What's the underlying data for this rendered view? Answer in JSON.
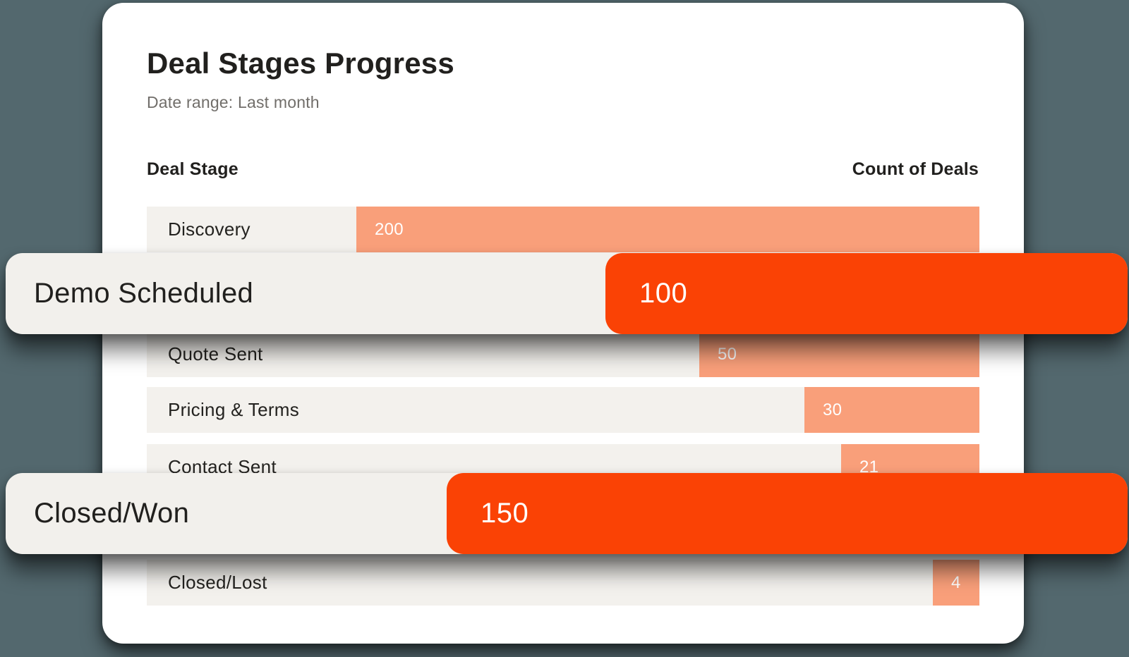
{
  "page": {
    "background_color": "#53686E"
  },
  "card": {
    "title": "Deal Stages Progress",
    "subtitle": "Date range: Last month",
    "columns": {
      "stage": "Deal Stage",
      "count": "Count of Deals"
    }
  },
  "colors": {
    "accent_strong": "#FA4205",
    "accent_soft": "#F99F7A",
    "row_background": "#F3F1ED",
    "card_background": "#FFFFFF",
    "text_dark": "#21201E",
    "text_muted": "#716E6A"
  },
  "rows": [
    {
      "label": "Discovery",
      "value": "200",
      "highlighted": false
    },
    {
      "label": "Demo Scheduled",
      "value": "100",
      "highlighted": true
    },
    {
      "label": "Quote Sent",
      "value": "50",
      "highlighted": false
    },
    {
      "label": "Pricing & Terms",
      "value": "30",
      "highlighted": false
    },
    {
      "label": "Contact Sent",
      "value": "21",
      "highlighted": false
    },
    {
      "label": "Closed/Won",
      "value": "150",
      "highlighted": true
    },
    {
      "label": "Closed/Lost",
      "value": "4",
      "highlighted": false
    }
  ],
  "chart_data": {
    "type": "bar",
    "orientation": "horizontal",
    "title": "Deal Stages Progress",
    "subtitle": "Date range: Last month",
    "ylabel": "Deal Stage",
    "xlabel": "Count of Deals",
    "categories": [
      "Discovery",
      "Demo Scheduled",
      "Quote Sent",
      "Pricing & Terms",
      "Contact Sent",
      "Closed/Won",
      "Closed/Lost"
    ],
    "values": [
      200,
      100,
      50,
      30,
      21,
      150,
      4
    ],
    "highlighted_categories": [
      "Demo Scheduled",
      "Closed/Won"
    ],
    "value_labels_shown": true,
    "legend": false,
    "gridlines": false,
    "axis_ticks_shown": false
  }
}
